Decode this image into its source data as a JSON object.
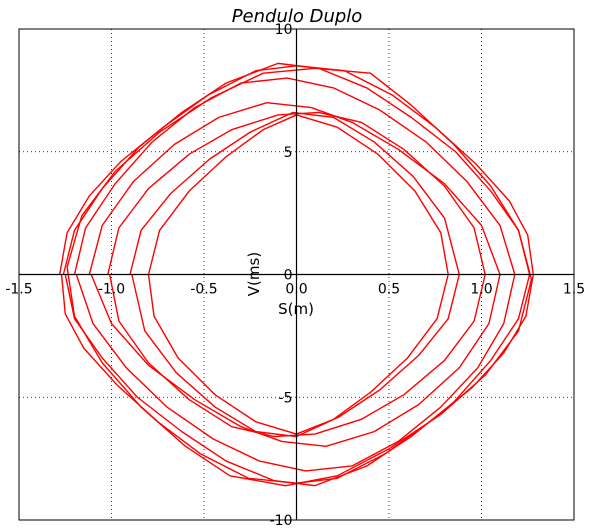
{
  "chart_data": {
    "type": "line",
    "title": "Pendulo Duplo",
    "xlabel": "S(m)",
    "ylabel": "V(ms)",
    "xlim": [
      -1.5,
      1.5
    ],
    "ylim": [
      -10,
      10
    ],
    "x_ticks": [
      -1.5,
      -1.0,
      -0.5,
      0.0,
      0.5,
      1.0,
      1.5
    ],
    "x_tick_labels": [
      "-1.5",
      "-1.0",
      "-0.5",
      "0.0",
      "0.5",
      "1.0",
      "1.5"
    ],
    "y_ticks": [
      -10,
      -5,
      0,
      5,
      10
    ],
    "y_tick_labels": [
      "-10",
      "-5",
      "0",
      "5",
      "10"
    ],
    "grid": true,
    "grid_style": "dotted",
    "line_color": "#ff0000",
    "series": [
      {
        "points": [
          [
            -1.28,
            0.0
          ],
          [
            -1.24,
            1.7
          ],
          [
            -1.12,
            3.2
          ],
          [
            -0.95,
            4.6
          ],
          [
            -0.72,
            6.0
          ],
          [
            -0.48,
            7.3
          ],
          [
            -0.22,
            8.3
          ],
          [
            0.0,
            8.5
          ],
          [
            0.26,
            8.3
          ],
          [
            0.52,
            7.3
          ],
          [
            0.75,
            6.0
          ],
          [
            0.97,
            4.5
          ],
          [
            1.15,
            3.0
          ],
          [
            1.25,
            1.6
          ],
          [
            1.28,
            0.0
          ],
          [
            1.24,
            -1.7
          ],
          [
            1.12,
            -3.2
          ],
          [
            0.95,
            -4.6
          ],
          [
            0.72,
            -6.0
          ],
          [
            0.48,
            -7.3
          ],
          [
            0.22,
            -8.3
          ],
          [
            0.0,
            -8.5
          ],
          [
            -0.26,
            -8.3
          ],
          [
            -0.52,
            -7.3
          ],
          [
            -0.75,
            -6.0
          ],
          [
            -0.97,
            -4.5
          ],
          [
            -1.15,
            -3.0
          ],
          [
            -1.25,
            -1.6
          ],
          [
            -1.27,
            0.0
          ]
        ]
      },
      {
        "points": [
          [
            -1.26,
            0.0
          ],
          [
            -1.2,
            1.8
          ],
          [
            -1.05,
            3.5
          ],
          [
            -0.85,
            5.2
          ],
          [
            -0.62,
            6.6
          ],
          [
            -0.38,
            7.8
          ],
          [
            -0.1,
            8.6
          ],
          [
            0.12,
            8.4
          ],
          [
            0.38,
            7.6
          ],
          [
            0.62,
            6.4
          ],
          [
            0.86,
            5.0
          ],
          [
            1.05,
            3.4
          ],
          [
            1.2,
            1.8
          ],
          [
            1.26,
            0.0
          ],
          [
            1.2,
            -1.8
          ],
          [
            1.05,
            -3.5
          ],
          [
            0.85,
            -5.2
          ],
          [
            0.62,
            -6.6
          ],
          [
            0.38,
            -7.8
          ],
          [
            0.1,
            -8.6
          ],
          [
            -0.12,
            -8.4
          ],
          [
            -0.38,
            -7.6
          ],
          [
            -0.62,
            -6.4
          ],
          [
            -0.86,
            -5.0
          ],
          [
            -1.05,
            -3.4
          ],
          [
            -1.2,
            -1.8
          ],
          [
            -1.25,
            0.0
          ]
        ]
      },
      {
        "points": [
          [
            -1.2,
            0.0
          ],
          [
            -1.14,
            1.9
          ],
          [
            -0.98,
            3.7
          ],
          [
            -0.78,
            5.4
          ],
          [
            -0.55,
            6.8
          ],
          [
            -0.3,
            7.8
          ],
          [
            -0.05,
            8.0
          ],
          [
            0.2,
            7.6
          ],
          [
            0.45,
            6.7
          ],
          [
            0.7,
            5.4
          ],
          [
            0.92,
            3.8
          ],
          [
            1.1,
            2.0
          ],
          [
            1.18,
            0.0
          ],
          [
            1.12,
            -2.0
          ],
          [
            0.98,
            -3.8
          ],
          [
            0.78,
            -5.4
          ],
          [
            0.55,
            -6.8
          ],
          [
            0.3,
            -7.8
          ],
          [
            0.05,
            -8.0
          ],
          [
            -0.2,
            -7.6
          ],
          [
            -0.45,
            -6.7
          ],
          [
            -0.7,
            -5.4
          ],
          [
            -0.92,
            -3.8
          ],
          [
            -1.1,
            -2.0
          ],
          [
            -1.19,
            0.0
          ]
        ]
      },
      {
        "points": [
          [
            -1.12,
            0.0
          ],
          [
            -1.05,
            2.0
          ],
          [
            -0.88,
            3.8
          ],
          [
            -0.66,
            5.3
          ],
          [
            -0.42,
            6.4
          ],
          [
            -0.16,
            7.0
          ],
          [
            0.08,
            6.8
          ],
          [
            0.3,
            6.2
          ],
          [
            0.55,
            5.1
          ],
          [
            0.8,
            3.7
          ],
          [
            1.0,
            2.0
          ],
          [
            1.1,
            0.0
          ],
          [
            1.04,
            -2.0
          ],
          [
            0.88,
            -3.8
          ],
          [
            0.66,
            -5.3
          ],
          [
            0.42,
            -6.4
          ],
          [
            0.16,
            -7.0
          ],
          [
            -0.08,
            -6.8
          ],
          [
            -0.3,
            -6.2
          ],
          [
            -0.55,
            -5.1
          ],
          [
            -0.8,
            -3.7
          ],
          [
            -1.0,
            -2.0
          ],
          [
            -1.11,
            0.0
          ]
        ]
      },
      {
        "points": [
          [
            -1.02,
            0.0
          ],
          [
            -0.96,
            1.9
          ],
          [
            -0.8,
            3.5
          ],
          [
            -0.58,
            4.9
          ],
          [
            -0.35,
            5.9
          ],
          [
            -0.1,
            6.5
          ],
          [
            0.12,
            6.6
          ],
          [
            0.35,
            6.2
          ],
          [
            0.58,
            5.1
          ],
          [
            0.8,
            3.6
          ],
          [
            0.96,
            1.9
          ],
          [
            1.02,
            0.0
          ],
          [
            0.96,
            -1.9
          ],
          [
            0.8,
            -3.5
          ],
          [
            0.58,
            -4.9
          ],
          [
            0.35,
            -5.9
          ],
          [
            0.1,
            -6.5
          ],
          [
            -0.12,
            -6.6
          ],
          [
            -0.35,
            -6.2
          ],
          [
            -0.58,
            -5.1
          ],
          [
            -0.8,
            -3.6
          ],
          [
            -0.96,
            -1.9
          ],
          [
            -1.01,
            0.0
          ]
        ]
      },
      {
        "points": [
          [
            -0.9,
            0.0
          ],
          [
            -0.84,
            1.8
          ],
          [
            -0.68,
            3.3
          ],
          [
            -0.47,
            4.7
          ],
          [
            -0.25,
            5.8
          ],
          [
            -0.02,
            6.6
          ],
          [
            0.2,
            6.4
          ],
          [
            0.42,
            5.4
          ],
          [
            0.63,
            4.0
          ],
          [
            0.8,
            2.3
          ],
          [
            0.88,
            0.0
          ],
          [
            0.82,
            -1.8
          ],
          [
            0.66,
            -3.3
          ],
          [
            0.45,
            -4.7
          ],
          [
            0.23,
            -5.8
          ],
          [
            0.0,
            -6.6
          ],
          [
            -0.22,
            -6.4
          ],
          [
            -0.44,
            -5.4
          ],
          [
            -0.65,
            -4.0
          ],
          [
            -0.82,
            -2.3
          ],
          [
            -0.89,
            0.0
          ]
        ]
      },
      {
        "points": [
          [
            -0.8,
            0.0
          ],
          [
            -0.74,
            1.8
          ],
          [
            -0.58,
            3.4
          ],
          [
            -0.38,
            4.8
          ],
          [
            -0.18,
            5.9
          ],
          [
            0.0,
            6.5
          ],
          [
            0.22,
            6.0
          ],
          [
            0.44,
            4.9
          ],
          [
            0.64,
            3.4
          ],
          [
            0.78,
            1.7
          ],
          [
            0.82,
            0.0
          ],
          [
            0.76,
            -1.8
          ],
          [
            0.6,
            -3.4
          ],
          [
            0.4,
            -4.8
          ],
          [
            0.2,
            -5.9
          ],
          [
            0.0,
            -6.5
          ],
          [
            -0.22,
            -6.0
          ],
          [
            -0.44,
            -4.9
          ],
          [
            -0.64,
            -3.4
          ],
          [
            -0.77,
            -1.7
          ],
          [
            -0.8,
            0.0
          ]
        ]
      },
      {
        "points": [
          [
            -1.24,
            0.3
          ],
          [
            -1.16,
            2.4
          ],
          [
            -0.98,
            4.2
          ],
          [
            -0.74,
            5.8
          ],
          [
            -0.46,
            7.2
          ],
          [
            -0.18,
            8.2
          ],
          [
            0.1,
            8.4
          ],
          [
            0.4,
            8.2
          ],
          [
            0.62,
            6.9
          ],
          [
            0.85,
            5.3
          ],
          [
            1.05,
            3.6
          ],
          [
            1.2,
            1.8
          ],
          [
            1.27,
            -0.2
          ],
          [
            1.2,
            -2.3
          ],
          [
            1.02,
            -4.1
          ],
          [
            0.78,
            -5.7
          ],
          [
            0.5,
            -7.1
          ],
          [
            0.22,
            -8.2
          ],
          [
            -0.06,
            -8.6
          ],
          [
            -0.36,
            -8.2
          ],
          [
            -0.6,
            -7.0
          ],
          [
            -0.84,
            -5.4
          ],
          [
            -1.05,
            -3.6
          ],
          [
            -1.2,
            -1.7
          ],
          [
            -1.24,
            0.3
          ]
        ]
      }
    ]
  }
}
